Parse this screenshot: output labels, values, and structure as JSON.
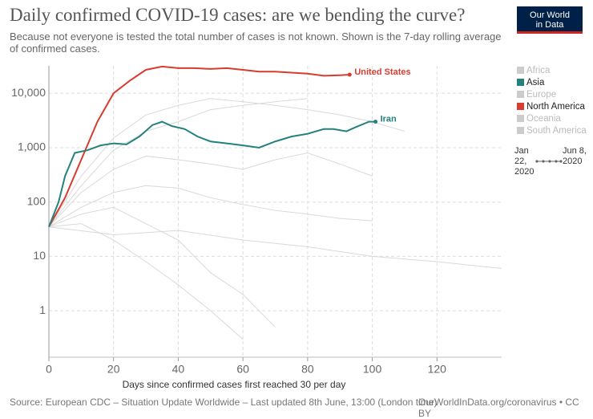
{
  "chart_data": {
    "type": "line",
    "title": "Daily confirmed COVID-19 cases: are we bending the curve?",
    "subtitle": "Because not everyone is tested the total number of cases is not known. Shown is the 7-day rolling average of confirmed cases.",
    "x_label": "Days since confirmed cases first reached 30 per day",
    "log_scale": true,
    "grid": true,
    "xlim": [
      0,
      140
    ],
    "xticks": [
      0,
      20,
      40,
      60,
      80,
      100,
      120
    ],
    "ylim": [
      0.14,
      32000
    ],
    "yticks": [
      1,
      10,
      100,
      {
        "value": 1000,
        "label": "1,000"
      },
      {
        "value": 10000,
        "label": "10,000"
      }
    ],
    "series": [
      {
        "name": "United States",
        "color": "#d73c2f",
        "x": [
          0,
          5,
          10,
          15,
          20,
          25,
          30,
          35,
          40,
          45,
          50,
          55,
          60,
          65,
          70,
          75,
          80,
          85,
          90,
          93
        ],
        "values": [
          35,
          120,
          600,
          3000,
          10000,
          17000,
          27000,
          31000,
          29000,
          29000,
          28000,
          29000,
          27000,
          25000,
          25000,
          24000,
          23000,
          21000,
          21500,
          22000
        ]
      },
      {
        "name": "Iran",
        "color": "#23827c",
        "x": [
          0,
          3,
          5,
          8,
          12,
          16,
          20,
          24,
          28,
          32,
          35,
          38,
          42,
          46,
          50,
          55,
          60,
          65,
          70,
          75,
          80,
          85,
          88,
          92,
          95,
          99,
          101
        ],
        "values": [
          35,
          100,
          300,
          800,
          900,
          1100,
          1200,
          1150,
          1600,
          2600,
          3000,
          2500,
          2200,
          1600,
          1300,
          1200,
          1100,
          1000,
          1300,
          1600,
          1800,
          2200,
          2200,
          2000,
          2400,
          3000,
          3000
        ]
      }
    ],
    "background_series": [
      {
        "color": "#d9d9d9",
        "x": [
          0,
          10,
          20,
          30,
          40,
          50,
          60,
          70,
          80
        ],
        "values": [
          35,
          200,
          900,
          2000,
          3000,
          5000,
          6000,
          7000,
          8000
        ]
      },
      {
        "color": "#d9d9d9",
        "x": [
          0,
          10,
          20,
          30,
          40,
          50,
          60,
          70,
          80,
          90,
          100
        ],
        "values": [
          35,
          150,
          400,
          700,
          600,
          500,
          400,
          600,
          800,
          500,
          300
        ]
      },
      {
        "color": "#d9d9d9",
        "x": [
          0,
          10,
          20,
          30,
          40,
          50,
          60,
          70
        ],
        "values": [
          35,
          60,
          80,
          40,
          20,
          5,
          2,
          0.5
        ]
      },
      {
        "color": "#d9d9d9",
        "x": [
          0,
          10,
          20,
          30,
          40,
          50,
          60,
          70,
          80,
          90,
          100
        ],
        "values": [
          35,
          80,
          150,
          200,
          180,
          120,
          90,
          70,
          60,
          50,
          45
        ]
      },
      {
        "color": "#d9d9d9",
        "x": [
          0,
          10,
          20,
          30,
          40,
          50,
          60
        ],
        "values": [
          35,
          40,
          20,
          8,
          3,
          1,
          0.3
        ]
      },
      {
        "color": "#d9d9d9",
        "x": [
          0,
          10,
          20,
          30,
          40,
          50,
          60,
          70,
          80,
          90,
          100,
          110
        ],
        "values": [
          35,
          300,
          1500,
          4000,
          6000,
          8000,
          7000,
          6000,
          5000,
          4000,
          3000,
          2000
        ]
      },
      {
        "color": "#d9d9d9",
        "x": [
          0,
          20,
          40,
          60,
          80,
          100,
          120,
          140
        ],
        "values": [
          35,
          25,
          30,
          20,
          15,
          10,
          8,
          6
        ]
      }
    ],
    "legend": [
      {
        "name": "Africa",
        "color": "#cccccc",
        "active": false
      },
      {
        "name": "Asia",
        "color": "#23827c",
        "active": true
      },
      {
        "name": "Europe",
        "color": "#cccccc",
        "active": false
      },
      {
        "name": "North America",
        "color": "#d73c2f",
        "active": true
      },
      {
        "name": "Oceania",
        "color": "#cccccc",
        "active": false
      },
      {
        "name": "South America",
        "color": "#cccccc",
        "active": false
      }
    ],
    "timeline": {
      "start": "Jan 22, 2020",
      "end": "Jun 8, 2020"
    },
    "logo": "Our World in Data",
    "source": "Source: European CDC – Situation Update Worldwide – Last updated 8th June, 13:00 (London time)",
    "footer_right": "OurWorldInData.org/coronavirus • CC BY"
  }
}
